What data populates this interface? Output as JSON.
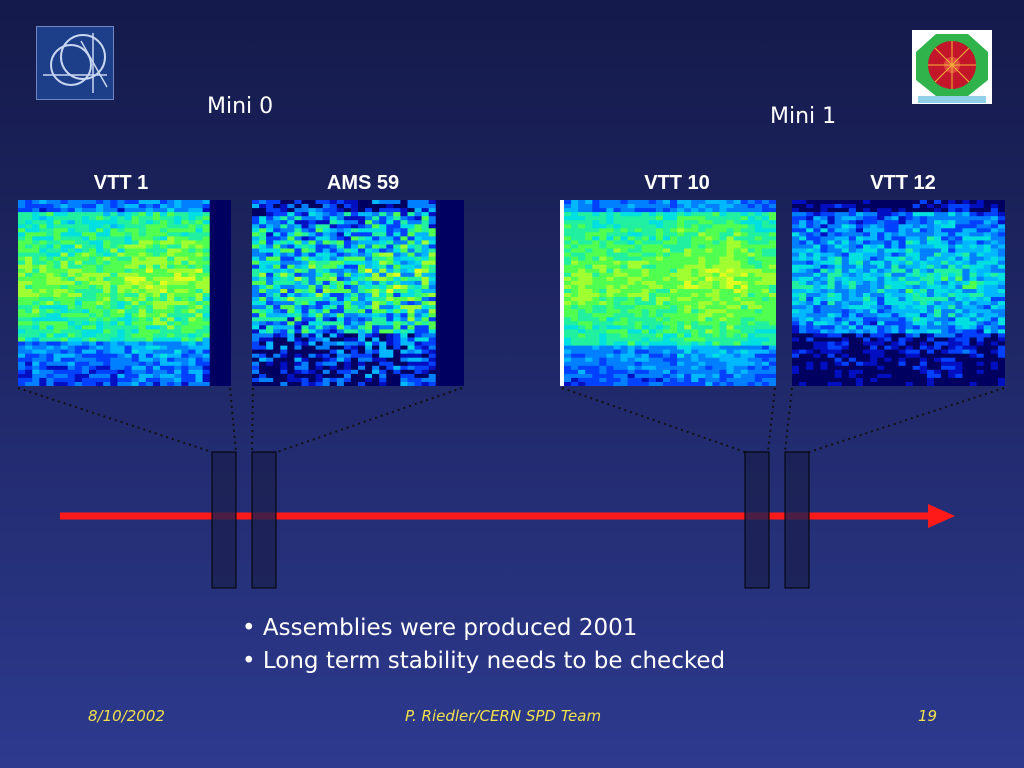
{
  "logos": {
    "left": "cern-logo",
    "right": "alice-logo"
  },
  "groups": [
    {
      "label": "Mini 0"
    },
    {
      "label": "Mini 1"
    }
  ],
  "detectors": [
    {
      "label": "VTT 1"
    },
    {
      "label": "AMS 59"
    },
    {
      "label": "VTT 10"
    },
    {
      "label": "VTT 12"
    }
  ],
  "bullets": [
    "• Assemblies were produced 2001",
    "• Long term stability needs to be checked"
  ],
  "footer": {
    "date": "8/10/2002",
    "author": "P. Riedler/CERN SPD Team",
    "page": "19"
  },
  "colors": {
    "arrow": "#ff1a1a",
    "detector_box": "#1b2050",
    "footer_text": "#f2e14a"
  }
}
